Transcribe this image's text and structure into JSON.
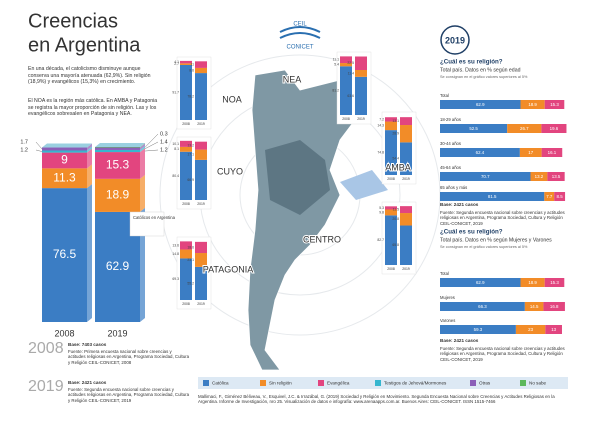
{
  "header": {
    "title_line1": "Creencias",
    "title_line2": "en Argentina",
    "logo_top": "CEIL",
    "logo_bottom": "CONICET",
    "year_badge": "2019"
  },
  "intro": [
    "En una década, el catolicismo disminuye aunque conserva una mayoría atenuada (62,9%). Sin religión (18,9%) y evangélicos (15,3%) en crecimiento.",
    "El NOA es la región más católica. En AMBA y Patagonia se registra la mayor proporción de sin religión. Las y los evangélicos sobresalen en Patagonia y NEA."
  ],
  "legend": [
    {
      "name": "Católica",
      "color": "#3b7dc4"
    },
    {
      "name": "Sin religión",
      "color": "#f28c28"
    },
    {
      "name": "Evangélica",
      "color": "#e2457f"
    },
    {
      "name": "Testigos de Jehová/Mormones",
      "color": "#35b6cf"
    },
    {
      "name": "Otras",
      "color": "#8b5fb8"
    },
    {
      "name": "No sabe",
      "color": "#5cb85c"
    }
  ],
  "national": {
    "categories": [
      "2008",
      "2019"
    ],
    "values": [
      [
        76.5,
        11.3,
        9.0,
        1.2,
        1.7,
        null
      ],
      [
        62.9,
        18.9,
        15.3,
        1.2,
        1.4,
        0.3
      ]
    ],
    "ylim": [
      0,
      100
    ],
    "inset_title": "Católicos en Argentina"
  },
  "regions": [
    {
      "name": "NOA",
      "categories": [
        "2008",
        "2019"
      ],
      "values": [
        [
          91.7,
          2.7,
          4.1
        ],
        [
          78.2,
          8.6,
          11.0
        ]
      ],
      "ylim": [
        0,
        100
      ]
    },
    {
      "name": "NEA",
      "categories": [
        "2008",
        "2019"
      ],
      "values": [
        [
          81.2,
          5.4,
          11.1
        ],
        [
          63.6,
          11.4,
          22.5
        ]
      ],
      "ylim": [
        0,
        100
      ]
    },
    {
      "name": "CUYO",
      "categories": [
        "2008",
        "2019"
      ],
      "values": [
        [
          80.4,
          8.1,
          10.1
        ],
        [
          66.9,
          17.1,
          13.2
        ]
      ],
      "ylim": [
        0,
        100
      ]
    },
    {
      "name": "AMBA",
      "categories": [
        "2008",
        "2019"
      ],
      "values": [
        [
          74.8,
          14.3,
          7.2
        ],
        [
          54.4,
          28.9,
          13.1
        ]
      ],
      "ylim": [
        0,
        100
      ]
    },
    {
      "name": "CENTRO",
      "categories": [
        "2008",
        "2019"
      ],
      "values": [
        [
          82.7,
          9.8,
          5.3
        ],
        [
          65.8,
          20.8,
          11.5
        ]
      ],
      "ylim": [
        0,
        100
      ]
    },
    {
      "name": "PATAGONIA",
      "categories": [
        "2008",
        "2019"
      ],
      "values": [
        [
          69.3,
          14.8,
          13.6
        ],
        [
          55.2,
          23.1,
          18.6
        ]
      ],
      "ylim": [
        0,
        100
      ]
    }
  ],
  "age_chart": {
    "heading": "¿Cuál es su religión?",
    "subheading": "Total país. Datos en % según edad",
    "note": "Se consignan en el gráfico valores superiores al 5%",
    "categories": [
      "Total",
      "18-29 años",
      "30-44 años",
      "45-64 años",
      "65 años y más"
    ],
    "values": [
      [
        62.9,
        18.9,
        15.3
      ],
      [
        52.5,
        26.7,
        19.6
      ],
      [
        62.4,
        17.0,
        16.1
      ],
      [
        70.7,
        13.2,
        13.5
      ],
      [
        81.5,
        7.7,
        8.5
      ]
    ],
    "xlim": [
      0,
      100
    ],
    "base": "Base: 2421 casos",
    "source": "Fuente: Segunda encuesta nacional sobre creencias y actitudes religiosas en Argentina, Programa Sociedad, Cultura y Religión CEIL-CONICET, 2019"
  },
  "gender_chart": {
    "heading": "¿Cuál es su religión?",
    "subheading": "Total país. Datos en % según Mujeres y Varones",
    "note": "Se consignan en el gráfico valores superiores al 5%",
    "categories": [
      "Total",
      "Mujeres",
      "Varones"
    ],
    "values": [
      [
        62.9,
        18.9,
        15.3
      ],
      [
        66.3,
        14.5,
        16.8
      ],
      [
        59.3,
        23.0,
        13.0
      ]
    ],
    "xlim": [
      0,
      100
    ],
    "base": "Base: 2421 casos",
    "source": "Fuente: Segunda encuesta nacional sobre creencias y actitudes religiosas en Argentina, Programa Sociedad, Cultura y Religión CEIL-CONICET, 2019"
  },
  "bases": [
    {
      "year": "2008",
      "base": "Base: 7403 casos",
      "source": "Fuente: Primera encuesta nacional sobre creencias y actitudes religiosas en Argentina, Programa Sociedad, Cultura y Religión CEIL-CONICET, 2008"
    },
    {
      "year": "2019",
      "base": "Base: 2421 casos",
      "source": "Fuente: Segunda encuesta nacional sobre creencias y actitudes religiosas en Argentina, Programa Sociedad, Cultura y Religión CEIL-CONICET, 2019"
    }
  ],
  "footer": "Mallimaci, F., Giménez Béliveau, V., Esquivel, J.C. & Irrazábal, G. (2019) Sociedad y Religión en Movimiento. Segunda Encuesta Nacional sobre Creencias y Actitudes Religiosas en la Argentina. Informe de Investigación, nro 25. Visualización de datos e infografía: www.arenaapps.com.ar. Buenos Aires: CEIL-CONICET. ISSN 1515-7466"
}
